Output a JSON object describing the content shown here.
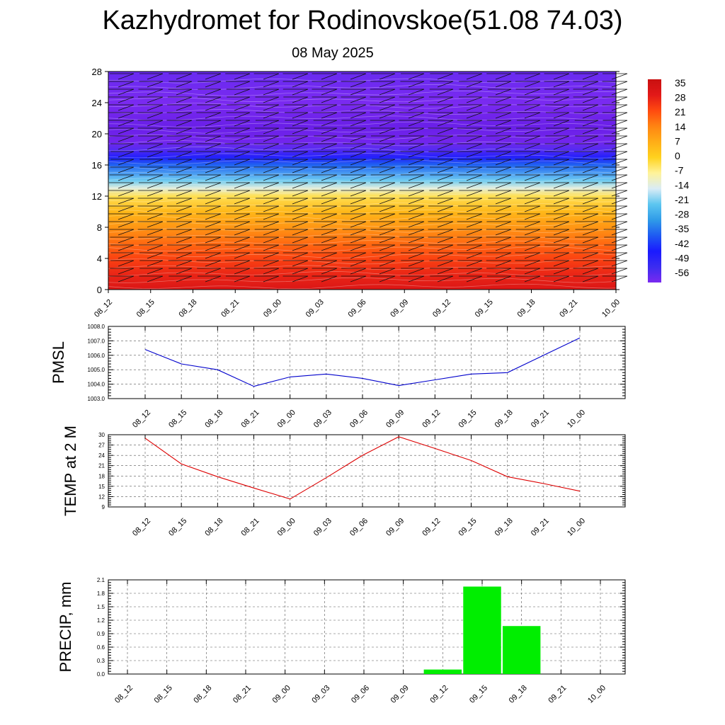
{
  "page": {
    "title": "Kazhydromet for Rodinovskoe(51.08 74.03)",
    "date": "08 May 2025"
  },
  "chart_data": [
    {
      "type": "heatmap",
      "x_ticks": [
        "08_12",
        "08_15",
        "08_18",
        "08_21",
        "09_00",
        "09_03",
        "09_06",
        "09_09",
        "09_12",
        "09_15",
        "09_18",
        "09_21",
        "10_00"
      ],
      "y_ticks": [
        0,
        4,
        8,
        12,
        16,
        20,
        24,
        28
      ],
      "ylim": [
        0,
        28
      ],
      "colorbar_labels": [
        "35",
        "28",
        "21",
        "14",
        "7",
        "0",
        "-7",
        "-14",
        "-21",
        "-28",
        "-35",
        "-42",
        "-49",
        "-56"
      ],
      "colorbar_range": [
        -56,
        35
      ],
      "temperature_profile": [
        {
          "level": 0,
          "value": 30
        },
        {
          "level": 2,
          "value": 26
        },
        {
          "level": 4,
          "value": 22
        },
        {
          "level": 6,
          "value": 17
        },
        {
          "level": 8,
          "value": 11
        },
        {
          "level": 10,
          "value": 5
        },
        {
          "level": 12,
          "value": -3
        },
        {
          "level": 13,
          "value": -12
        },
        {
          "level": 14,
          "value": -20
        },
        {
          "level": 16,
          "value": -34
        },
        {
          "level": 17,
          "value": -44
        },
        {
          "level": 18,
          "value": -52
        },
        {
          "level": 19,
          "value": -58
        },
        {
          "level": 21,
          "value": -60
        },
        {
          "level": 24,
          "value": -56
        },
        {
          "level": 28,
          "value": -54
        }
      ],
      "overlay": "wind barbs"
    },
    {
      "type": "line",
      "ylabel": "PMSL",
      "categories": [
        "08_12",
        "08_15",
        "08_18",
        "08_21",
        "09_00",
        "09_03",
        "09_06",
        "09_09",
        "09_12",
        "09_15",
        "09_18",
        "09_21",
        "10_00"
      ],
      "series": [
        {
          "values": [
            1006.4,
            1005.4,
            1005.0,
            1003.85,
            1004.5,
            1004.7,
            1004.4,
            1003.9,
            1004.3,
            1004.7,
            1004.8,
            1006.0,
            1007.2
          ]
        }
      ],
      "ylim": [
        1003.0,
        1008.0
      ],
      "y_ticks": [
        "1003.0",
        "1004.0",
        "1005.0",
        "1006.0",
        "1007.0",
        "1008.0"
      ],
      "line_color": "#0000cc",
      "grid": true
    },
    {
      "type": "line",
      "ylabel": "TEMP at 2 M",
      "categories": [
        "08_12",
        "08_15",
        "08_18",
        "08_21",
        "09_00",
        "09_03",
        "09_06",
        "09_09",
        "09_12",
        "09_15",
        "09_18",
        "09_21",
        "10_00"
      ],
      "series": [
        {
          "values": [
            29.0,
            21.5,
            17.8,
            14.5,
            11.3,
            17.5,
            24.0,
            29.4,
            26.0,
            22.5,
            17.8,
            15.8,
            13.6
          ]
        }
      ],
      "ylim": [
        9,
        30
      ],
      "y_ticks": [
        "9",
        "12",
        "15",
        "18",
        "21",
        "24",
        "27",
        "30"
      ],
      "line_color": "#dd0000",
      "grid": true
    },
    {
      "type": "bar",
      "ylabel": "PRECIP, mm",
      "categories": [
        "08_12",
        "08_15",
        "08_18",
        "08_21",
        "09_00",
        "09_03",
        "09_06",
        "09_09",
        "09_12",
        "09_15",
        "09_18",
        "09_21",
        "10_00"
      ],
      "values": [
        0,
        0,
        0,
        0,
        0,
        0,
        0,
        0,
        0.1,
        1.95,
        1.07,
        0,
        0
      ],
      "ylim": [
        0,
        2.1
      ],
      "y_ticks": [
        "0.0",
        "0.3",
        "0.6",
        "0.9",
        "1.2",
        "1.5",
        "1.8",
        "2.1"
      ],
      "bar_color": "#00ee00",
      "grid": true
    }
  ]
}
